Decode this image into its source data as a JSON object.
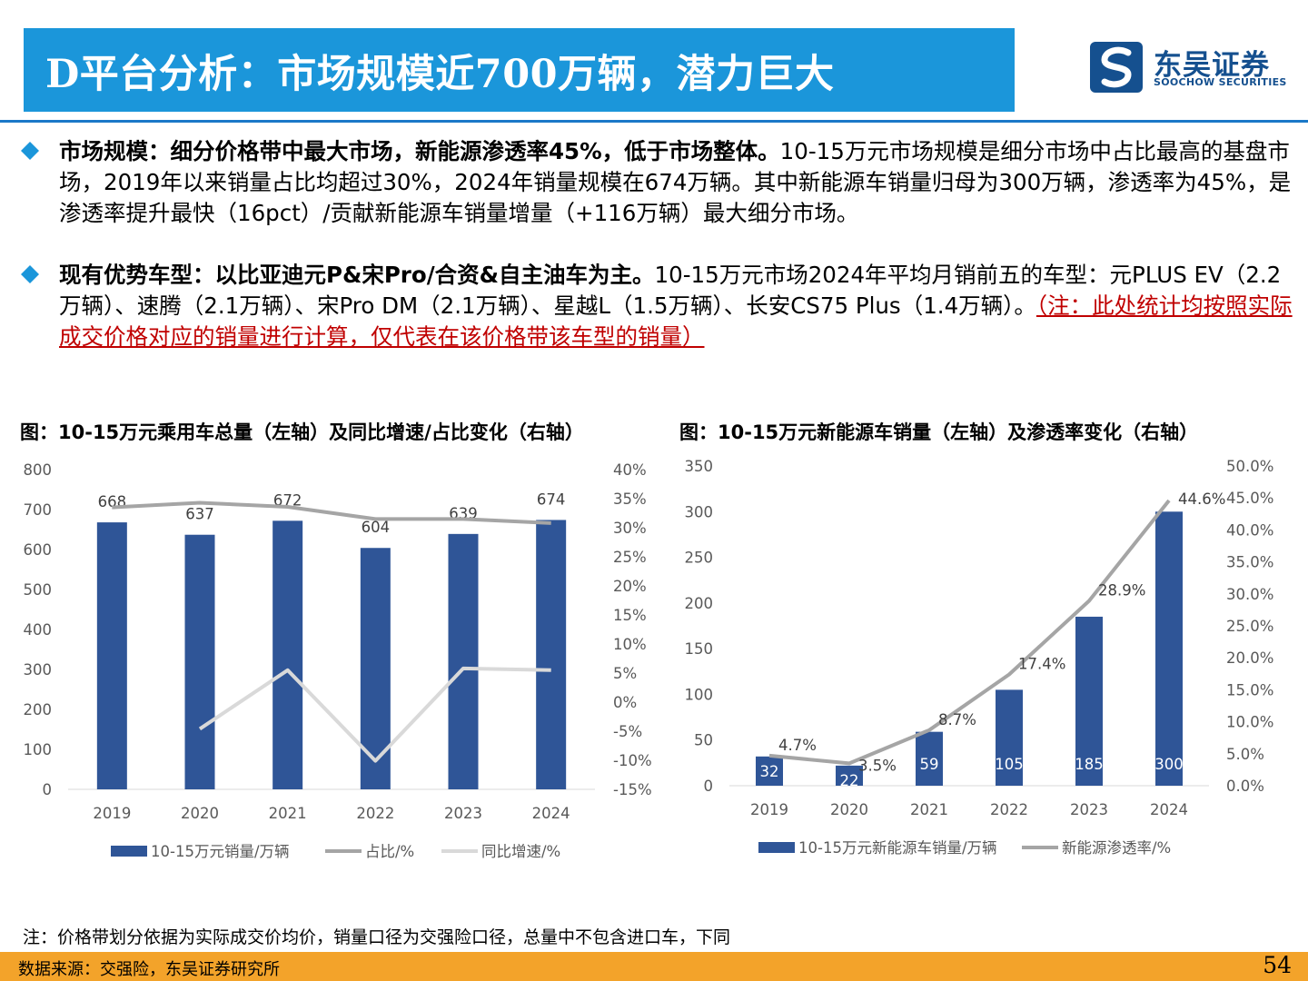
{
  "header": {
    "title": "D平台分析：市场规模近700万辆，潜力巨大",
    "logo_name": "东吴证券",
    "logo_en": "SOOCHOW SECURITIES"
  },
  "colors": {
    "header_blue": "#1b96da",
    "logo_navy": "#15508f",
    "bar_navy": "#2f5597",
    "line_gray": "#a5a5a5",
    "line_light": "#d9d9d9",
    "footer_orange": "#f3a32a",
    "note_red": "#c00000"
  },
  "bullets": [
    {
      "bold": "市场规模：细分价格带中最大市场，新能源渗透率45%，低于市场整体。",
      "text": "10-15万元市场规模是细分市场中占比最高的基盘市场，2019年以来销量占比均超过30%，2024年销量规模在674万辆。其中新能源车销量归母为300万辆，渗透率为45%，是渗透率提升最快（16pct）/贡献新能源车销量增量（+116万辆）最大细分市场。"
    },
    {
      "bold": "现有优势车型：以比亚迪元P&宋Pro/合资&自主油车为主。",
      "text": "10-15万元市场2024年平均月销前五的车型：元PLUS EV（2.2万辆）、速腾（2.1万辆）、宋Pro DM（2.1万辆）、星越L（1.5万辆）、长安CS75 Plus（1.4万辆）。",
      "note": "（注：此处统计均按照实际成交价格对应的销量进行计算，仅代表在该价格带该车型的销量）"
    }
  ],
  "chart1_title": "图：10-15万元乘用车总量（左轴）及同比增速/占比变化（右轴）",
  "chart2_title": "图：10-15万元新能源车销量（左轴）及渗透率变化（右轴）",
  "chart_data": [
    {
      "type": "bar",
      "title": "图：10-15万元乘用车总量（左轴）及同比增速/占比变化（右轴）",
      "categories": [
        "2019",
        "2020",
        "2021",
        "2022",
        "2023",
        "2024"
      ],
      "series": [
        {
          "name": "10-15万元销量/万辆",
          "type": "bar",
          "axis": "left",
          "values": [
            668,
            637,
            672,
            604,
            639,
            674
          ],
          "labels": [
            "668",
            "637",
            "672",
            "604",
            "639",
            "674"
          ]
        },
        {
          "name": "占比/%",
          "type": "line",
          "axis": "right",
          "values": [
            33.5,
            34.3,
            33.6,
            31.5,
            31.5,
            30.8
          ]
        },
        {
          "name": "同比增速/%",
          "type": "line",
          "axis": "right",
          "values": [
            null,
            -4.6,
            5.5,
            -10.1,
            5.8,
            5.5
          ]
        }
      ],
      "y_left": {
        "min": 0,
        "max": 800,
        "step": 100,
        "ticks": [
          "0",
          "100",
          "200",
          "300",
          "400",
          "500",
          "600",
          "700",
          "800"
        ]
      },
      "y_right": {
        "min": -15,
        "max": 40,
        "step": 5,
        "ticks": [
          "-15%",
          "-10%",
          "-5%",
          "0%",
          "5%",
          "10%",
          "15%",
          "20%",
          "25%",
          "30%",
          "35%",
          "40%"
        ]
      },
      "legend_position": "bottom",
      "grid": false
    },
    {
      "type": "bar",
      "title": "图：10-15万元新能源车销量（左轴）及渗透率变化（右轴）",
      "categories": [
        "2019",
        "2020",
        "2021",
        "2022",
        "2023",
        "2024"
      ],
      "series": [
        {
          "name": "10-15万元新能源车销量/万辆",
          "type": "bar",
          "axis": "left",
          "values": [
            32,
            22,
            59,
            105,
            185,
            300
          ],
          "labels": [
            "32",
            "22",
            "59",
            "105",
            "185",
            "300"
          ]
        },
        {
          "name": "新能源渗透率/%",
          "type": "line",
          "axis": "right",
          "values": [
            4.7,
            3.5,
            8.7,
            17.4,
            28.9,
            44.6
          ],
          "labels": [
            "4.7%",
            "3.5%",
            "8.7%",
            "17.4%",
            "28.9%",
            "44.6%"
          ]
        }
      ],
      "y_left": {
        "min": 0,
        "max": 350,
        "step": 50,
        "ticks": [
          "0",
          "50",
          "100",
          "150",
          "200",
          "250",
          "300",
          "350"
        ]
      },
      "y_right": {
        "min": 0,
        "max": 50,
        "step": 5,
        "ticks": [
          "0.0%",
          "5.0%",
          "10.0%",
          "15.0%",
          "20.0%",
          "25.0%",
          "30.0%",
          "35.0%",
          "40.0%",
          "45.0%",
          "50.0%"
        ]
      },
      "legend_position": "bottom",
      "grid": false
    }
  ],
  "footnote": "注：价格带划分依据为实际成交价均价，销量口径为交强险口径，总量中不包含进口车，下同",
  "footer": {
    "source": "数据来源：交强险，东吴证券研究所",
    "page_number": "54"
  }
}
